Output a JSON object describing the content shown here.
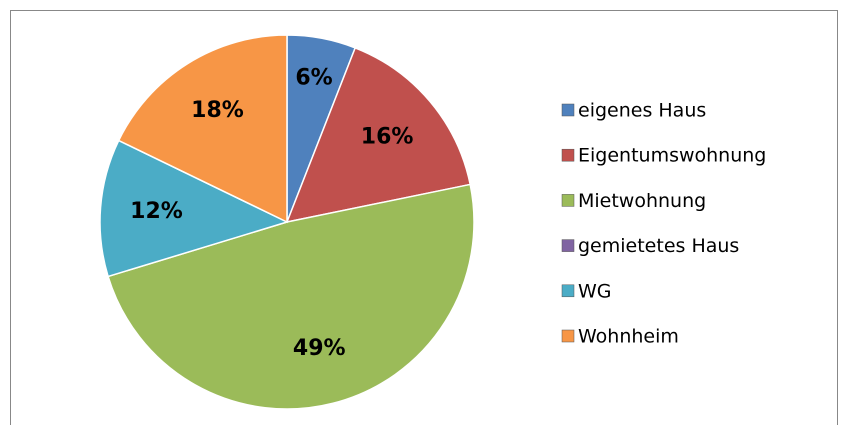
{
  "chart_data": {
    "type": "pie",
    "categories": [
      "eigenes Haus",
      "Eigentumswohnung",
      "Mietwohnung",
      "gemietetes Haus",
      "WG",
      "Wohnheim"
    ],
    "values": [
      6,
      16,
      49,
      0,
      12,
      18
    ],
    "value_labels": [
      "6%",
      "16%",
      "49%",
      null,
      "12%",
      "18%"
    ],
    "colors": [
      "#4F81BD",
      "#C0504D",
      "#9BBB59",
      "#8064A2",
      "#4BACC6",
      "#F79646"
    ],
    "legend": "right"
  }
}
